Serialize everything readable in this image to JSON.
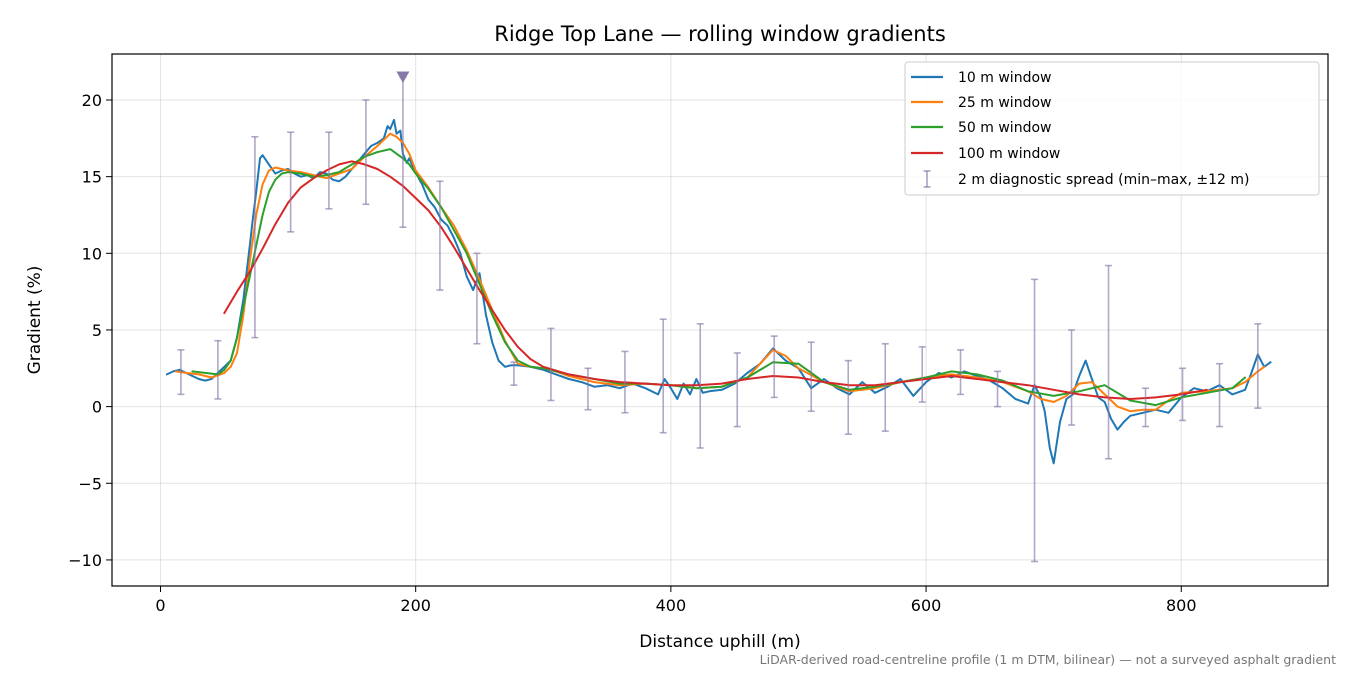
{
  "chart_data": {
    "type": "line",
    "title": "Ridge Top Lane — rolling window gradients",
    "xlabel": "Distance uphill (m)",
    "ylabel": "Gradient (%)",
    "xlim": [
      -38,
      915
    ],
    "ylim": [
      -11.7,
      23.0
    ],
    "x_ticks": [
      0,
      200,
      400,
      600,
      800
    ],
    "x_tick_labels": [
      "0",
      "200",
      "400",
      "600",
      "800"
    ],
    "y_ticks": [
      -10,
      -5,
      0,
      5,
      10,
      15,
      20
    ],
    "y_tick_labels": [
      "−10",
      "−5",
      "0",
      "5",
      "10",
      "15",
      "20"
    ],
    "grid": true,
    "legend_position": "top-right",
    "footnote": "LiDAR-derived road-centreline profile (1 m DTM, bilinear) — not a surveyed asphalt gradient",
    "peak_marker": {
      "x": 190,
      "y": 21.5,
      "color": "#8878a8"
    },
    "series": [
      {
        "name": "10 m window",
        "color": "#1f77b4",
        "width": 2.0,
        "x": [
          5,
          10,
          15,
          20,
          25,
          30,
          35,
          40,
          45,
          50,
          55,
          60,
          65,
          70,
          72,
          75,
          78,
          80,
          85,
          90,
          95,
          100,
          105,
          110,
          115,
          120,
          125,
          130,
          135,
          140,
          145,
          150,
          155,
          160,
          165,
          170,
          175,
          178,
          180,
          183,
          185,
          188,
          190,
          193,
          195,
          198,
          200,
          203,
          205,
          210,
          215,
          220,
          225,
          230,
          235,
          240,
          245,
          250,
          255,
          260,
          265,
          270,
          275,
          280,
          290,
          300,
          310,
          320,
          330,
          340,
          350,
          360,
          370,
          380,
          390,
          395,
          400,
          405,
          410,
          415,
          420,
          425,
          430,
          440,
          450,
          460,
          470,
          480,
          490,
          500,
          510,
          520,
          530,
          540,
          550,
          560,
          570,
          580,
          590,
          600,
          610,
          620,
          630,
          640,
          650,
          660,
          670,
          680,
          685,
          690,
          693,
          697,
          700,
          705,
          710,
          715,
          720,
          725,
          730,
          735,
          740,
          745,
          750,
          755,
          760,
          770,
          780,
          790,
          800,
          810,
          820,
          830,
          840,
          850,
          855,
          860,
          865,
          870
        ],
        "values": [
          2.1,
          2.3,
          2.4,
          2.2,
          2.0,
          1.8,
          1.7,
          1.8,
          2.2,
          2.6,
          3.0,
          4.5,
          7.0,
          10.5,
          12.0,
          14.0,
          16.2,
          16.4,
          15.8,
          15.2,
          15.4,
          15.5,
          15.2,
          15.0,
          15.1,
          14.9,
          15.3,
          15.2,
          14.8,
          14.7,
          15.0,
          15.5,
          16.0,
          16.5,
          17.0,
          17.2,
          17.5,
          18.3,
          18.1,
          18.7,
          17.8,
          18.0,
          16.5,
          15.9,
          16.2,
          15.6,
          15.3,
          14.8,
          14.5,
          13.5,
          13.0,
          12.2,
          11.8,
          11.0,
          10.0,
          8.5,
          7.6,
          8.7,
          6.0,
          4.2,
          3.0,
          2.6,
          2.7,
          2.7,
          2.6,
          2.4,
          2.1,
          1.8,
          1.6,
          1.3,
          1.4,
          1.2,
          1.5,
          1.2,
          0.8,
          1.8,
          1.2,
          0.5,
          1.5,
          0.8,
          1.8,
          0.9,
          1.0,
          1.1,
          1.5,
          2.2,
          2.8,
          3.8,
          3.0,
          2.5,
          1.2,
          1.8,
          1.2,
          0.8,
          1.6,
          0.9,
          1.3,
          1.8,
          0.7,
          1.6,
          2.2,
          1.9,
          2.3,
          2.0,
          1.7,
          1.2,
          0.5,
          0.2,
          1.4,
          0.6,
          -0.3,
          -2.7,
          -3.7,
          -1.0,
          0.5,
          0.8,
          2.0,
          3.0,
          1.8,
          0.6,
          0.3,
          -0.8,
          -1.5,
          -1.0,
          -0.6,
          -0.4,
          -0.2,
          -0.4,
          0.6,
          1.2,
          1.0,
          1.4,
          0.8,
          1.1,
          2.2,
          3.4,
          2.6,
          2.9
        ]
      },
      {
        "name": "25 m window",
        "color": "#ff7f0e",
        "width": 2.0,
        "x": [
          12,
          20,
          30,
          40,
          50,
          55,
          60,
          65,
          70,
          75,
          80,
          85,
          90,
          95,
          100,
          110,
          120,
          130,
          140,
          150,
          160,
          170,
          180,
          185,
          190,
          195,
          200,
          210,
          220,
          230,
          240,
          250,
          260,
          270,
          280,
          290,
          300,
          310,
          320,
          340,
          360,
          380,
          400,
          420,
          440,
          460,
          470,
          480,
          490,
          500,
          520,
          540,
          560,
          580,
          600,
          620,
          640,
          660,
          680,
          690,
          700,
          710,
          720,
          730,
          740,
          750,
          760,
          770,
          780,
          790,
          800,
          820,
          840,
          850,
          860,
          865
        ],
        "values": [
          2.3,
          2.2,
          2.1,
          1.9,
          2.2,
          2.6,
          3.5,
          6.0,
          9.5,
          12.5,
          14.5,
          15.4,
          15.6,
          15.5,
          15.4,
          15.3,
          15.1,
          14.9,
          15.2,
          15.5,
          16.3,
          17.0,
          17.8,
          17.6,
          17.2,
          16.5,
          15.4,
          14.3,
          13.0,
          11.8,
          10.2,
          8.3,
          6.3,
          4.3,
          2.8,
          2.6,
          2.5,
          2.3,
          2.0,
          1.6,
          1.4,
          1.5,
          1.4,
          1.2,
          1.3,
          1.9,
          2.8,
          3.7,
          3.3,
          2.5,
          1.6,
          1.0,
          1.2,
          1.6,
          1.9,
          2.1,
          1.9,
          1.6,
          1.0,
          0.5,
          0.3,
          0.7,
          1.5,
          1.6,
          0.8,
          0.0,
          -0.3,
          -0.2,
          -0.2,
          0.4,
          0.9,
          1.0,
          1.2,
          1.6,
          2.3,
          2.6
        ]
      },
      {
        "name": "50 m window",
        "color": "#2ca02c",
        "width": 2.0,
        "x": [
          25,
          35,
          45,
          50,
          55,
          60,
          65,
          70,
          75,
          80,
          85,
          90,
          95,
          100,
          110,
          120,
          130,
          140,
          150,
          160,
          170,
          180,
          185,
          190,
          195,
          200,
          210,
          220,
          230,
          240,
          250,
          260,
          270,
          280,
          290,
          300,
          320,
          340,
          360,
          380,
          400,
          420,
          440,
          460,
          480,
          500,
          520,
          540,
          560,
          580,
          600,
          620,
          640,
          660,
          680,
          700,
          720,
          740,
          760,
          780,
          800,
          820,
          840,
          850
        ],
        "values": [
          2.3,
          2.2,
          2.1,
          2.4,
          3.0,
          4.5,
          6.5,
          8.5,
          10.5,
          12.5,
          14.0,
          14.8,
          15.2,
          15.3,
          15.2,
          15.0,
          15.1,
          15.3,
          15.8,
          16.3,
          16.6,
          16.8,
          16.5,
          16.2,
          15.8,
          15.2,
          14.2,
          13.0,
          11.5,
          10.0,
          8.0,
          6.0,
          4.2,
          3.0,
          2.6,
          2.5,
          2.1,
          1.8,
          1.5,
          1.5,
          1.4,
          1.2,
          1.3,
          1.9,
          2.9,
          2.8,
          1.6,
          1.1,
          1.3,
          1.6,
          1.9,
          2.3,
          2.1,
          1.7,
          1.0,
          0.7,
          1.0,
          1.4,
          0.4,
          0.1,
          0.6,
          0.9,
          1.2,
          1.9
        ]
      },
      {
        "name": "100 m window",
        "color": "#d62728",
        "width": 2.0,
        "x": [
          50,
          60,
          70,
          80,
          90,
          100,
          110,
          120,
          130,
          140,
          150,
          160,
          170,
          180,
          190,
          200,
          210,
          220,
          230,
          240,
          250,
          260,
          270,
          280,
          290,
          300,
          320,
          340,
          360,
          380,
          400,
          420,
          440,
          460,
          480,
          500,
          520,
          540,
          560,
          580,
          600,
          620,
          640,
          660,
          680,
          700,
          720,
          740,
          760,
          780,
          800,
          820
        ],
        "values": [
          6.1,
          7.5,
          8.8,
          10.3,
          11.9,
          13.3,
          14.3,
          14.9,
          15.4,
          15.8,
          16.0,
          15.8,
          15.5,
          15.0,
          14.4,
          13.6,
          12.8,
          11.7,
          10.4,
          9.0,
          7.6,
          6.3,
          5.0,
          3.9,
          3.1,
          2.6,
          2.1,
          1.8,
          1.6,
          1.5,
          1.4,
          1.4,
          1.5,
          1.8,
          2.0,
          1.9,
          1.6,
          1.4,
          1.4,
          1.6,
          1.8,
          2.0,
          1.8,
          1.6,
          1.4,
          1.1,
          0.8,
          0.6,
          0.5,
          0.6,
          0.8,
          1.1
        ]
      }
    ],
    "error_bars": {
      "name": "2 m diagnostic spread (min–max, ±12 m)",
      "color": "#8878a8",
      "points": [
        {
          "x": 16,
          "low": 0.8,
          "high": 3.7
        },
        {
          "x": 45,
          "low": 0.5,
          "high": 4.3
        },
        {
          "x": 74,
          "low": 4.5,
          "high": 17.6
        },
        {
          "x": 102,
          "low": 11.4,
          "high": 17.9
        },
        {
          "x": 132,
          "low": 12.9,
          "high": 17.9
        },
        {
          "x": 161,
          "low": 13.2,
          "high": 20.0
        },
        {
          "x": 190,
          "low": 11.7,
          "high": 21.5
        },
        {
          "x": 219,
          "low": 7.6,
          "high": 14.7
        },
        {
          "x": 248,
          "low": 4.1,
          "high": 10.0
        },
        {
          "x": 277,
          "low": 1.4,
          "high": 2.9
        },
        {
          "x": 306,
          "low": 0.4,
          "high": 5.1
        },
        {
          "x": 335,
          "low": -0.2,
          "high": 2.5
        },
        {
          "x": 364,
          "low": -0.4,
          "high": 3.6
        },
        {
          "x": 394,
          "low": -1.7,
          "high": 5.7
        },
        {
          "x": 423,
          "low": -2.7,
          "high": 5.4
        },
        {
          "x": 452,
          "low": -1.3,
          "high": 3.5
        },
        {
          "x": 481,
          "low": 0.6,
          "high": 4.6
        },
        {
          "x": 510,
          "low": -0.3,
          "high": 4.2
        },
        {
          "x": 539,
          "low": -1.8,
          "high": 3.0
        },
        {
          "x": 568,
          "low": -1.6,
          "high": 4.1
        },
        {
          "x": 597,
          "low": 0.3,
          "high": 3.9
        },
        {
          "x": 627,
          "low": 0.8,
          "high": 3.7
        },
        {
          "x": 656,
          "low": 0.0,
          "high": 2.3
        },
        {
          "x": 685,
          "low": -10.1,
          "high": 8.3
        },
        {
          "x": 714,
          "low": -1.2,
          "high": 5.0
        },
        {
          "x": 743,
          "low": -3.4,
          "high": 9.2
        },
        {
          "x": 772,
          "low": -1.3,
          "high": 1.2
        },
        {
          "x": 801,
          "low": -0.9,
          "high": 2.5
        },
        {
          "x": 830,
          "low": -1.3,
          "high": 2.8
        },
        {
          "x": 860,
          "low": -0.1,
          "high": 5.4
        }
      ]
    }
  }
}
